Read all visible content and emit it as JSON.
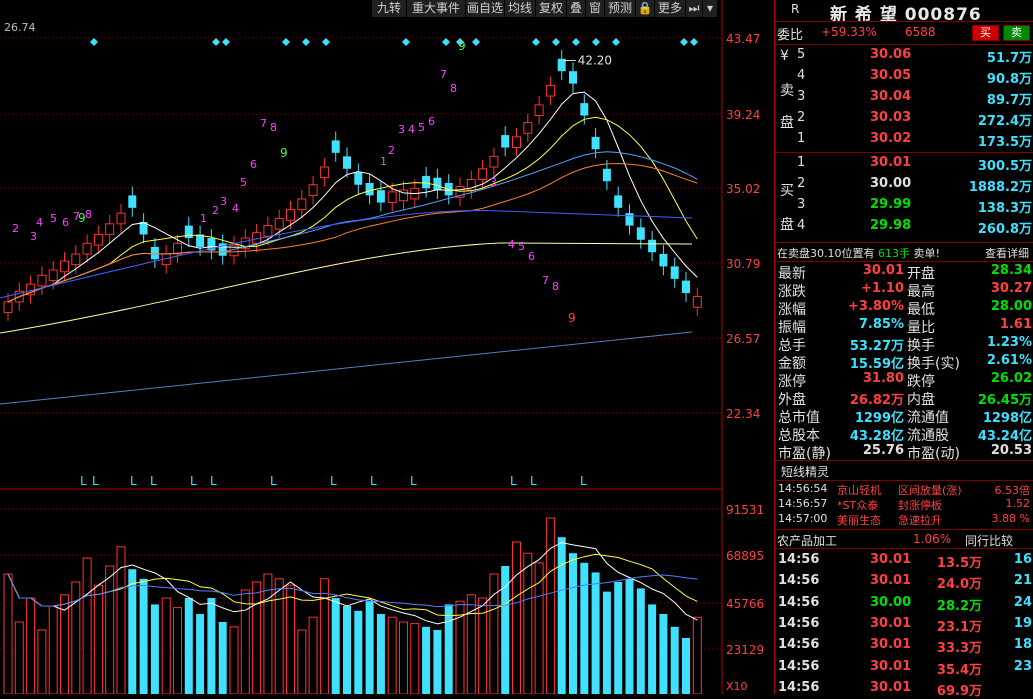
{
  "toolbar": {
    "buttons": [
      "九转",
      "重大事件",
      "画自选",
      "均线",
      "复权",
      "叠",
      "窗",
      "预测",
      "🔒",
      "更多"
    ],
    "last_icon": "play-end-icon",
    "dropdown_icon": "chevron-down-icon"
  },
  "chart": {
    "top_left_label": "26.74",
    "price_ticks": [
      "43.47",
      "39.24",
      "35.02",
      "30.79",
      "26.57",
      "22.34"
    ],
    "max_label": "42.20",
    "volume_ticks": [
      "91531",
      "68895",
      "45766",
      "23129"
    ],
    "volume_unit": "X10",
    "count_labels_magenta": [
      "2",
      "3",
      "4",
      "5",
      "6",
      "7",
      "8",
      "1",
      "2",
      "3",
      "4",
      "5",
      "6",
      "7",
      "8",
      "1",
      "2",
      "3",
      "4",
      "5",
      "6",
      "7",
      "8",
      "3",
      "4",
      "5",
      "6",
      "7",
      "8"
    ],
    "count_labels_green": [
      "9",
      "9"
    ],
    "count_label_red_bottom": "9",
    "bottom_markers": [
      "L",
      "L",
      "L",
      "L",
      "L",
      "L",
      "L",
      "L",
      "L",
      "L",
      "L",
      "L",
      "L"
    ]
  },
  "colors": {
    "up": "#ff3030",
    "down": "#40e0ff",
    "ma5": "#ffffff",
    "ma10": "#ffff40",
    "ma20": "#ff50ff",
    "ma30": "#50a0ff",
    "ma60": "#ff8030",
    "bg": "#000000"
  },
  "panel": {
    "market_tag": "R",
    "stock_name": "新 希 望",
    "stock_code": "000876",
    "buy_btn": "买",
    "sell_btn": "卖",
    "weibi_label": "委比",
    "weibi_value": "+59.33%",
    "weicha_value": "6588",
    "sell_label_chars": [
      "¥",
      "卖",
      "盘"
    ],
    "buy_label_chars": [
      "买",
      "盘"
    ],
    "asks": [
      {
        "lvl": "5",
        "price": "30.06",
        "vol": "51.7万"
      },
      {
        "lvl": "4",
        "price": "30.05",
        "vol": "90.8万"
      },
      {
        "lvl": "3",
        "price": "30.04",
        "vol": "89.7万"
      },
      {
        "lvl": "2",
        "price": "30.03",
        "vol": "272.4万"
      },
      {
        "lvl": "1",
        "price": "30.02",
        "vol": "173.5万"
      }
    ],
    "bids": [
      {
        "lvl": "1",
        "price": "30.01",
        "vol": "300.5万"
      },
      {
        "lvl": "2",
        "price": "30.00",
        "vol": "1888.2万"
      },
      {
        "lvl": "3",
        "price": "29.99",
        "vol": "138.3万"
      },
      {
        "lvl": "4",
        "price": "29.98",
        "vol": "260.8万"
      }
    ],
    "notice_prefix": "在卖盘30.10位置有",
    "notice_count": "613手",
    "notice_suffix": "卖单!",
    "notice_link": "查看详细",
    "stats": [
      {
        "l1": "最新",
        "v1": "30.01",
        "c1": "red",
        "l2": "开盘",
        "v2": "28.34",
        "c2": "green"
      },
      {
        "l1": "涨跌",
        "v1": "+1.10",
        "c1": "red",
        "l2": "最高",
        "v2": "30.27",
        "c2": "red"
      },
      {
        "l1": "涨幅",
        "v1": "+3.80%",
        "c1": "red",
        "l2": "最低",
        "v2": "28.00",
        "c2": "green"
      },
      {
        "l1": "振幅",
        "v1": "7.85%",
        "c1": "cyan",
        "l2": "量比",
        "v2": "1.61",
        "c2": "red"
      },
      {
        "l1": "总手",
        "v1": "53.27万",
        "c1": "cyan",
        "l2": "换手",
        "v2": "1.23%",
        "c2": "cyan"
      },
      {
        "l1": "金额",
        "v1": "15.59亿",
        "c1": "cyan",
        "l2": "换手(实)",
        "v2": "2.61%",
        "c2": "cyan"
      },
      {
        "l1": "涨停",
        "v1": "31.80",
        "c1": "red",
        "l2": "跌停",
        "v2": "26.02",
        "c2": "green"
      },
      {
        "l1": "外盘",
        "v1": "26.82万",
        "c1": "red",
        "l2": "内盘",
        "v2": "26.45万",
        "c2": "green"
      },
      {
        "l1": "总市值",
        "v1": "1299亿",
        "c1": "cyan",
        "l2": "流通值",
        "v2": "1298亿",
        "c2": "cyan"
      },
      {
        "l1": "总股本",
        "v1": "43.28亿",
        "c1": "cyan",
        "l2": "流通股",
        "v2": "43.24亿",
        "c2": "cyan"
      },
      {
        "l1": "市盈(静)",
        "v1": "25.76",
        "c1": "white",
        "l2": "市盈(动)",
        "v2": "20.53",
        "c2": "white"
      }
    ],
    "sprite_title": "短线精灵",
    "sprites": [
      {
        "time": "14:56:54",
        "name": "京山轻机",
        "event": "区间放量(涨)",
        "val": "6.53倍"
      },
      {
        "time": "14:56:57",
        "name": "*ST众泰",
        "event": "封涨停板",
        "val": "1.52"
      },
      {
        "time": "14:57:00",
        "name": "美丽生态",
        "event": "急速拉升",
        "val": "3.88 %"
      }
    ],
    "sector_name": "农产品加工",
    "sector_change": "1.06%",
    "sector_compare": "同行比较",
    "ticks": [
      {
        "time": "14:56",
        "price": "30.01",
        "vol": "13.5万",
        "n": "16",
        "c": "red"
      },
      {
        "time": "14:56",
        "price": "30.01",
        "vol": "24.0万",
        "n": "21",
        "c": "red"
      },
      {
        "time": "14:56",
        "price": "30.00",
        "vol": "28.2万",
        "n": "24",
        "c": "green"
      },
      {
        "time": "14:56",
        "price": "30.01",
        "vol": "23.1万",
        "n": "19",
        "c": "red"
      },
      {
        "time": "14:56",
        "price": "30.01",
        "vol": "33.3万",
        "n": "18",
        "c": "red"
      },
      {
        "time": "14:56",
        "price": "30.01",
        "vol": "35.4万",
        "n": "23",
        "c": "red"
      },
      {
        "time": "14:56",
        "price": "30.01",
        "vol": "69.9万",
        "n": "",
        "c": "red"
      }
    ]
  }
}
